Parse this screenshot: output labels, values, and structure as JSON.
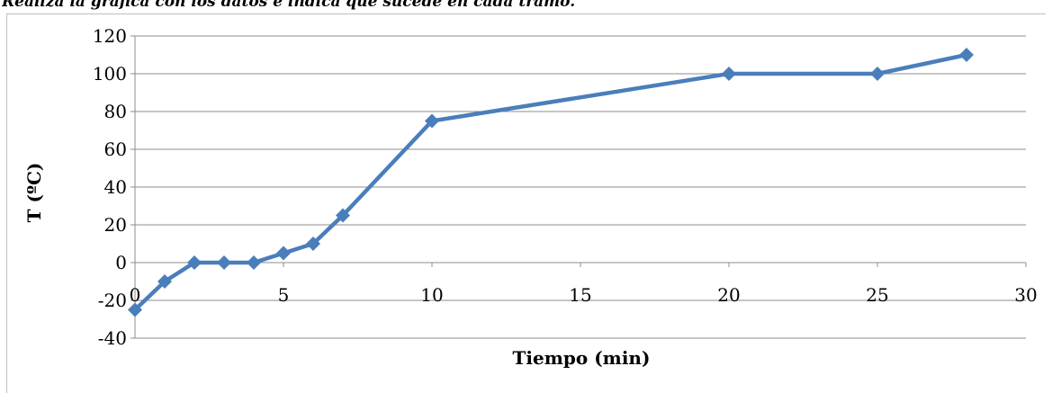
{
  "instruction": "Realiza la gráfica con los datos e indica qué sucede en cada tramo.",
  "chart_data": {
    "type": "line",
    "xlabel": "Tiempo (min)",
    "ylabel": "T (ºC)",
    "x": [
      0,
      1,
      2,
      3,
      4,
      5,
      6,
      7,
      10,
      20,
      25,
      28
    ],
    "series": [
      {
        "values": [
          -25,
          -10,
          0,
          0,
          0,
          5,
          10,
          25,
          75,
          100,
          100,
          110
        ]
      }
    ],
    "xlim": [
      0,
      30
    ],
    "ylim": [
      -40,
      120
    ],
    "x_ticks": [
      0,
      5,
      10,
      15,
      20,
      25,
      30
    ],
    "y_ticks": [
      -40,
      -20,
      0,
      20,
      40,
      60,
      80,
      100,
      120
    ],
    "grid": "horizontal",
    "legend": "none",
    "line_color": "#4a7ebb",
    "marker": "diamond"
  }
}
